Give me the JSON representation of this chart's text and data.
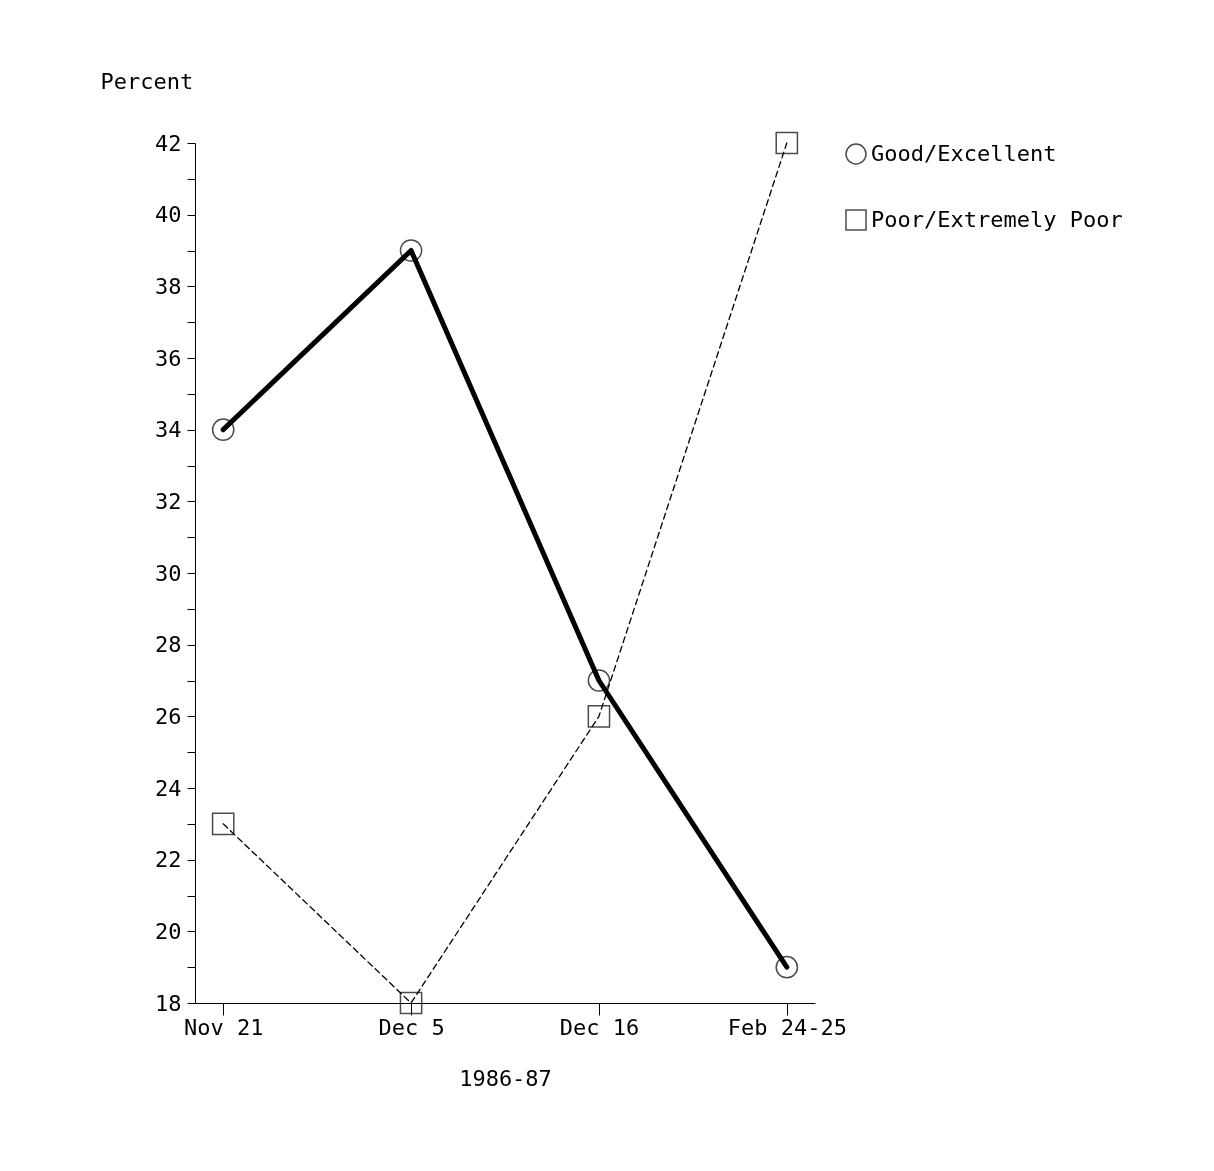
{
  "chart_data": {
    "type": "line",
    "xlabel": "1986-87",
    "ylabel": "Percent",
    "categories": [
      "Nov 21",
      "Dec 5",
      "Dec 16",
      "Feb 24-25"
    ],
    "series": [
      {
        "name": "Good/Excellent",
        "color": "#000000",
        "values": [
          34,
          39,
          27,
          19
        ],
        "marker": "circle",
        "line_style": "solid"
      },
      {
        "name": "Poor/Extremely Poor",
        "color": "#000000",
        "values": [
          23,
          18,
          26,
          42
        ],
        "marker": "square",
        "line_style": "dashed"
      }
    ],
    "ylim": [
      18,
      42
    ],
    "yticks": [
      18,
      {
        "value": 19,
        "label": null
      },
      20,
      {
        "value": 21,
        "label": null
      },
      22,
      {
        "value": 23,
        "label": null
      },
      24,
      {
        "value": 25,
        "label": null
      },
      26,
      {
        "value": 27,
        "label": null
      },
      28,
      {
        "value": 29,
        "label": null
      },
      30,
      {
        "value": 31,
        "label": null
      },
      32,
      {
        "value": 33,
        "label": null
      },
      34,
      {
        "value": 35,
        "label": null
      },
      36,
      {
        "value": 37,
        "label": null
      },
      38,
      {
        "value": 39,
        "label": null
      },
      40,
      {
        "value": 41,
        "label": null
      },
      42
    ],
    "grid": false,
    "legend": "top right"
  }
}
